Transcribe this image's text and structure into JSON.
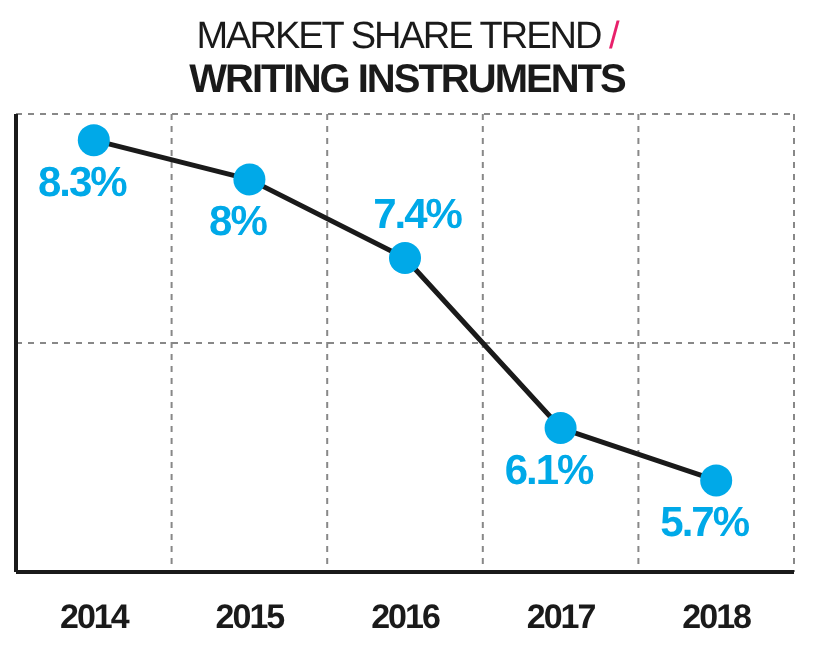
{
  "chart_data": {
    "type": "line",
    "title": "MARKET SHARE TREND /",
    "subtitle": "WRITING INSTRUMENTS",
    "categories": [
      "2014",
      "2015",
      "2016",
      "2017",
      "2018"
    ],
    "series": [
      {
        "color": "#1a1a1a",
        "colors": [
          "#00a9e8",
          "#00a9e8",
          "#00a9e8",
          "#00a9e8",
          "#00a9e8"
        ],
        "values": [
          8.3,
          8,
          7.4,
          6.1,
          5.7
        ],
        "value_labels": [
          "8.3%",
          "8%",
          "7.4%",
          "6.1%",
          "5.7%"
        ]
      }
    ],
    "marker": "circle",
    "ylim": [
      5,
      8.5
    ],
    "grid": true
  }
}
